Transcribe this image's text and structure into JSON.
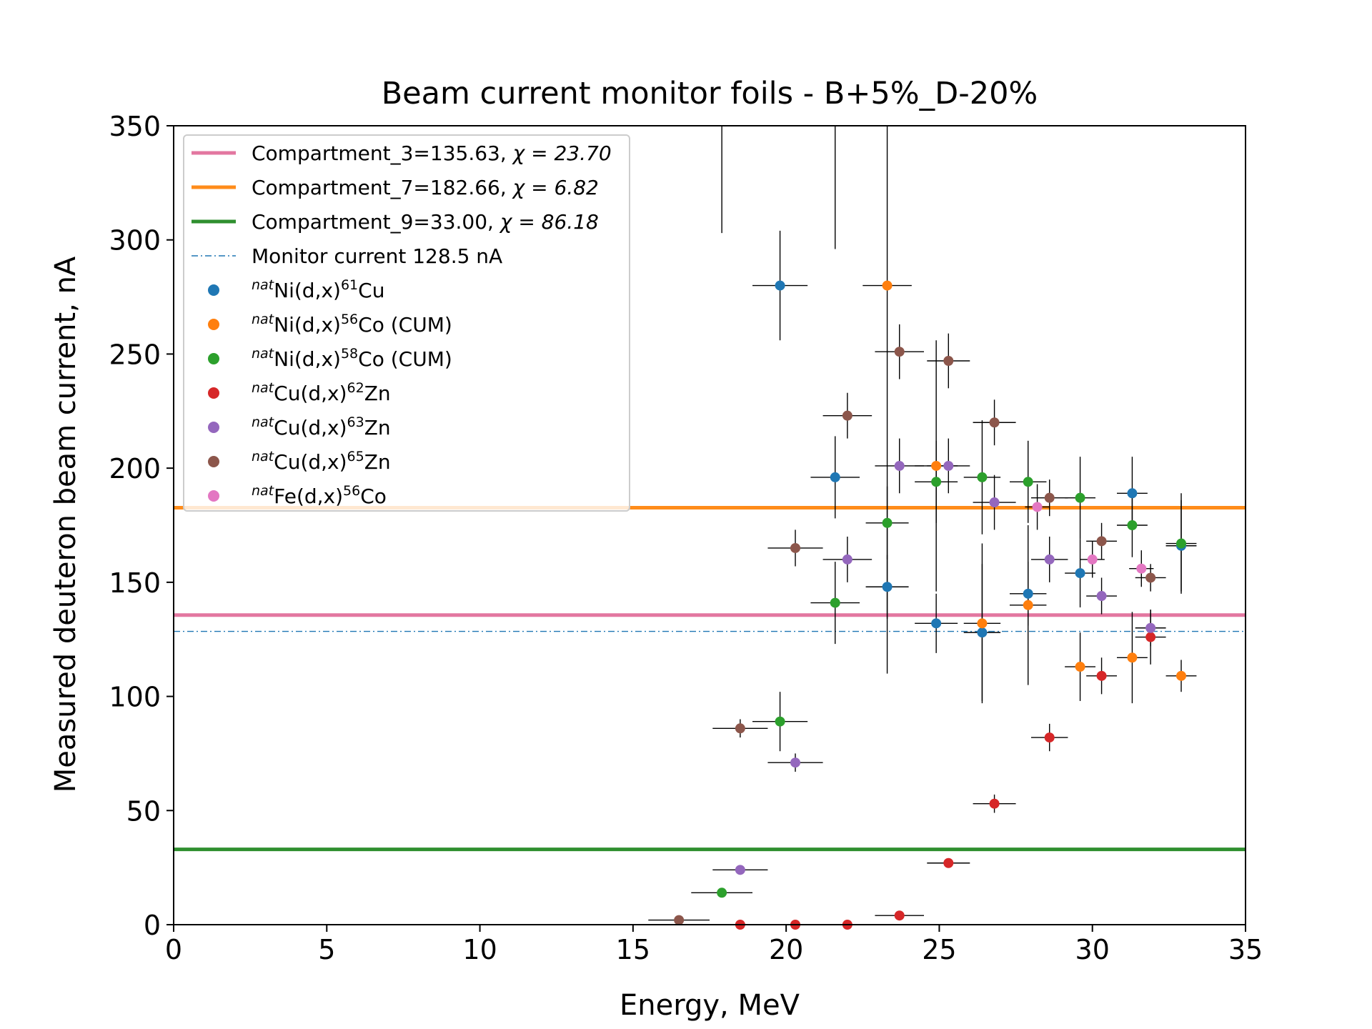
{
  "chart_data": {
    "type": "scatter",
    "title": "Beam current monitor foils - B+5%_D-20%",
    "xlabel": "Energy, MeV",
    "ylabel": "Measured deuteron beam current, nA",
    "xlim": [
      0,
      35
    ],
    "ylim": [
      0,
      350
    ],
    "xticks": [
      0,
      5,
      10,
      15,
      20,
      25,
      30,
      35
    ],
    "yticks": [
      0,
      50,
      100,
      150,
      200,
      250,
      300,
      350
    ],
    "grid": false,
    "legend_position": "upper-left",
    "hlines": [
      {
        "label_prefix": "Compartment_3=135.63, ",
        "chi_label": "χ = 23.70",
        "y": 135.63,
        "color": "#e377a0",
        "style": "solid"
      },
      {
        "label_prefix": "Compartment_7=182.66, ",
        "chi_label": "χ = 6.82",
        "y": 182.66,
        "color": "#ff8c1a",
        "style": "solid"
      },
      {
        "label_prefix": "Compartment_9=33.00, ",
        "chi_label": "χ = 86.18",
        "y": 33.0,
        "color": "#2f8f2f",
        "style": "solid"
      },
      {
        "label_prefix": "Monitor current 128.5 nA",
        "chi_label": "",
        "y": 128.5,
        "color": "#1f77b4",
        "style": "dashdot"
      }
    ],
    "series": [
      {
        "sup": "nat",
        "pre": "Ni(d,x)",
        "iso_sup": "61",
        "post": "Cu",
        "color": "#1f77b4",
        "points": [
          {
            "x": 19.8,
            "y": 280,
            "xerr": 0.9,
            "yerr": 24
          },
          {
            "x": 21.6,
            "y": 196,
            "xerr": 0.8,
            "yerr": 18
          },
          {
            "x": 23.3,
            "y": 148,
            "xerr": 0.7,
            "yerr": 14
          },
          {
            "x": 24.9,
            "y": 132,
            "xerr": 0.7,
            "yerr": 13
          },
          {
            "x": 26.4,
            "y": 128,
            "xerr": 0.6,
            "yerr": 30
          },
          {
            "x": 27.9,
            "y": 145,
            "xerr": 0.6,
            "yerr": 14
          },
          {
            "x": 29.6,
            "y": 154,
            "xerr": 0.5,
            "yerr": 15
          },
          {
            "x": 31.3,
            "y": 189,
            "xerr": 0.5,
            "yerr": 16
          },
          {
            "x": 32.9,
            "y": 166,
            "xerr": 0.5,
            "yerr": 20
          }
        ]
      },
      {
        "sup": "nat",
        "pre": "Ni(d,x)",
        "iso_sup": "56",
        "post": "Co (CUM)",
        "color": "#ff7f0e",
        "points": [
          {
            "x": 23.3,
            "y": 280,
            "xerr": 0.8,
            "yerr": 170
          },
          {
            "x": 24.9,
            "y": 201,
            "xerr": 0.7,
            "yerr": 55
          },
          {
            "x": 26.4,
            "y": 132,
            "xerr": 0.6,
            "yerr": 35
          },
          {
            "x": 27.9,
            "y": 140,
            "xerr": 0.6,
            "yerr": 35
          },
          {
            "x": 29.6,
            "y": 113,
            "xerr": 0.5,
            "yerr": 15
          },
          {
            "x": 31.3,
            "y": 117,
            "xerr": 0.5,
            "yerr": 20
          },
          {
            "x": 32.9,
            "y": 109,
            "xerr": 0.5,
            "yerr": 7
          }
        ]
      },
      {
        "sup": "nat",
        "pre": "Ni(d,x)",
        "iso_sup": "58",
        "post": "Co (CUM)",
        "color": "#2ca02c",
        "points": [
          {
            "x": 17.9,
            "y": 14,
            "xerr": 1.0,
            "yerr": 1
          },
          {
            "x": 19.8,
            "y": 89,
            "xerr": 0.9,
            "yerr": 13
          },
          {
            "x": 21.6,
            "y": 141,
            "xerr": 0.8,
            "yerr": 18
          },
          {
            "x": 23.3,
            "y": 176,
            "xerr": 0.7,
            "yerr": 16
          },
          {
            "x": 24.9,
            "y": 194,
            "xerr": 0.7,
            "yerr": 18
          },
          {
            "x": 26.4,
            "y": 196,
            "xerr": 0.6,
            "yerr": 25
          },
          {
            "x": 27.9,
            "y": 194,
            "xerr": 0.6,
            "yerr": 18
          },
          {
            "x": 29.6,
            "y": 187,
            "xerr": 0.5,
            "yerr": 18
          },
          {
            "x": 31.3,
            "y": 175,
            "xerr": 0.5,
            "yerr": 14
          },
          {
            "x": 32.9,
            "y": 167,
            "xerr": 0.5,
            "yerr": 22
          }
        ]
      },
      {
        "sup": "nat",
        "pre": "Cu(d,x)",
        "iso_sup": "62",
        "post": "Zn",
        "color": "#d62728",
        "points": [
          {
            "x": 18.5,
            "y": 0,
            "xerr": 0,
            "yerr": 0
          },
          {
            "x": 20.3,
            "y": 0,
            "xerr": 0,
            "yerr": 0
          },
          {
            "x": 22.0,
            "y": 0,
            "xerr": 0,
            "yerr": 0
          },
          {
            "x": 23.7,
            "y": 4,
            "xerr": 0.8,
            "yerr": 1
          },
          {
            "x": 25.3,
            "y": 27,
            "xerr": 0.7,
            "yerr": 1
          },
          {
            "x": 26.8,
            "y": 53,
            "xerr": 0.7,
            "yerr": 4
          },
          {
            "x": 28.6,
            "y": 82,
            "xerr": 0.6,
            "yerr": 6
          },
          {
            "x": 30.3,
            "y": 109,
            "xerr": 0.5,
            "yerr": 8
          },
          {
            "x": 31.9,
            "y": 126,
            "xerr": 0.5,
            "yerr": 12
          }
        ]
      },
      {
        "sup": "nat",
        "pre": "Cu(d,x)",
        "iso_sup": "63",
        "post": "Zn",
        "color": "#9467bd",
        "points": [
          {
            "x": 18.5,
            "y": 24,
            "xerr": 0.9,
            "yerr": 1
          },
          {
            "x": 20.3,
            "y": 71,
            "xerr": 0.9,
            "yerr": 4
          },
          {
            "x": 22.0,
            "y": 160,
            "xerr": 0.8,
            "yerr": 10
          },
          {
            "x": 23.7,
            "y": 201,
            "xerr": 0.8,
            "yerr": 12
          },
          {
            "x": 25.3,
            "y": 201,
            "xerr": 0.7,
            "yerr": 12
          },
          {
            "x": 26.8,
            "y": 185,
            "xerr": 0.7,
            "yerr": 12
          },
          {
            "x": 28.6,
            "y": 160,
            "xerr": 0.6,
            "yerr": 10
          },
          {
            "x": 30.3,
            "y": 144,
            "xerr": 0.5,
            "yerr": 8
          },
          {
            "x": 31.9,
            "y": 130,
            "xerr": 0.5,
            "yerr": 8
          }
        ]
      },
      {
        "sup": "nat",
        "pre": "Cu(d,x)",
        "iso_sup": "65",
        "post": "Zn",
        "color": "#8c564b",
        "points": [
          {
            "x": 16.5,
            "y": 2,
            "xerr": 1.0,
            "yerr": 0.5
          },
          {
            "x": 18.5,
            "y": 86,
            "xerr": 0.9,
            "yerr": 4
          },
          {
            "x": 20.3,
            "y": 165,
            "xerr": 0.9,
            "yerr": 8
          },
          {
            "x": 22.0,
            "y": 223,
            "xerr": 0.8,
            "yerr": 10
          },
          {
            "x": 23.7,
            "y": 251,
            "xerr": 0.8,
            "yerr": 12
          },
          {
            "x": 25.3,
            "y": 247,
            "xerr": 0.7,
            "yerr": 12
          },
          {
            "x": 26.8,
            "y": 220,
            "xerr": 0.7,
            "yerr": 10
          },
          {
            "x": 28.6,
            "y": 187,
            "xerr": 0.6,
            "yerr": 8
          },
          {
            "x": 30.3,
            "y": 168,
            "xerr": 0.5,
            "yerr": 8
          },
          {
            "x": 31.9,
            "y": 152,
            "xerr": 0.5,
            "yerr": 6
          }
        ]
      },
      {
        "sup": "nat",
        "pre": "Fe(d,x)",
        "iso_sup": "56",
        "post": "Co",
        "color": "#e377c2",
        "points": [
          {
            "x": 28.2,
            "y": 183,
            "xerr": 0.4,
            "yerr": 10
          },
          {
            "x": 30.0,
            "y": 160,
            "xerr": 0.4,
            "yerr": 8
          },
          {
            "x": 31.6,
            "y": 156,
            "xerr": 0.4,
            "yerr": 8
          }
        ]
      }
    ],
    "offscale_errorbars": [
      {
        "x": 17.9,
        "y_low": 303
      },
      {
        "x": 21.6,
        "y_low": 296
      }
    ]
  }
}
